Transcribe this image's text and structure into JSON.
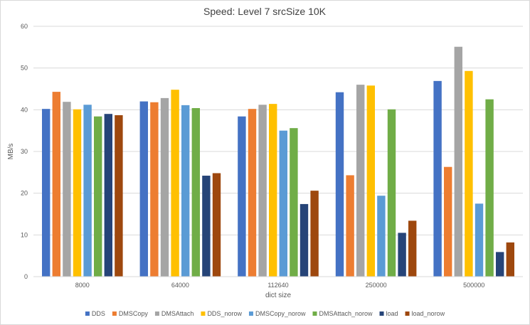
{
  "chart_data": {
    "type": "bar",
    "title": "Speed: Level 7 srcSize 10K",
    "xlabel": "dict size",
    "ylabel": "MB/s",
    "ylim": [
      0,
      60
    ],
    "yticks": [
      0,
      10,
      20,
      30,
      40,
      50,
      60
    ],
    "grid": true,
    "legend_position": "bottom",
    "categories": [
      "8000",
      "64000",
      "112640",
      "250000",
      "500000"
    ],
    "series": [
      {
        "name": "DDS",
        "color": "#4472c4",
        "values": [
          40.2,
          42.0,
          38.4,
          44.2,
          46.9
        ]
      },
      {
        "name": "DMSCopy",
        "color": "#ed7d31",
        "values": [
          44.3,
          41.8,
          40.2,
          24.3,
          26.3
        ]
      },
      {
        "name": "DMSAttach",
        "color": "#a5a5a5",
        "values": [
          41.9,
          42.8,
          41.2,
          46.0,
          55.1
        ]
      },
      {
        "name": "DDS_norow",
        "color": "#ffc000",
        "values": [
          40.1,
          44.8,
          41.4,
          45.8,
          49.3
        ]
      },
      {
        "name": "DMSCopy_norow",
        "color": "#5b9bd5",
        "values": [
          41.2,
          41.1,
          35.0,
          19.4,
          17.5
        ]
      },
      {
        "name": "DMSAttach_norow",
        "color": "#70ad47",
        "values": [
          38.4,
          40.4,
          35.6,
          40.1,
          42.5
        ]
      },
      {
        "name": "load",
        "color": "#264478",
        "values": [
          39.0,
          24.2,
          17.4,
          10.5,
          5.9
        ]
      },
      {
        "name": "load_norow",
        "color": "#9e480e",
        "values": [
          38.7,
          24.8,
          20.6,
          13.4,
          8.2
        ]
      }
    ]
  }
}
